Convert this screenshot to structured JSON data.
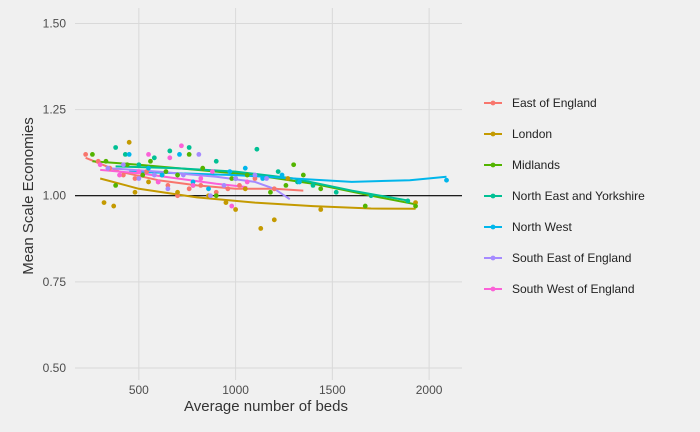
{
  "chart_data": {
    "type": "scatter",
    "title": "",
    "xlabel": "Average number of beds",
    "ylabel": "Mean Scale Economies",
    "xlim": [
      170,
      2170
    ],
    "ylim": [
      0.465,
      1.545
    ],
    "xticks": [
      500,
      1000,
      1500,
      2000
    ],
    "yticks": [
      0.5,
      0.75,
      1.0,
      1.25,
      1.5
    ],
    "ytick_labels": [
      "0.50",
      "0.75",
      "1.00",
      "1.25",
      "1.50"
    ],
    "reference_line_y": 1.0,
    "grid": true,
    "legend_position": "right",
    "series": [
      {
        "name": "East of England",
        "color": "#F8766D",
        "points": [
          [
            225,
            1.12
          ],
          [
            290,
            1.1
          ],
          [
            350,
            1.08
          ],
          [
            420,
            1.06
          ],
          [
            480,
            1.05
          ],
          [
            540,
            1.07
          ],
          [
            600,
            1.04
          ],
          [
            650,
            1.03
          ],
          [
            700,
            1.0
          ],
          [
            760,
            1.02
          ],
          [
            820,
            1.03
          ],
          [
            900,
            1.01
          ],
          [
            960,
            1.02
          ],
          [
            1020,
            1.03
          ],
          [
            1100,
            1.05
          ],
          [
            1200,
            1.02
          ]
        ],
        "fit": [
          [
            225,
            1.11
          ],
          [
            400,
            1.07
          ],
          [
            600,
            1.045
          ],
          [
            800,
            1.03
          ],
          [
            1000,
            1.02
          ],
          [
            1200,
            1.02
          ],
          [
            1350,
            1.015
          ]
        ]
      },
      {
        "name": "London",
        "color": "#C49A00",
        "points": [
          [
            320,
            0.98
          ],
          [
            370,
            0.97
          ],
          [
            450,
            1.155
          ],
          [
            480,
            1.01
          ],
          [
            550,
            1.04
          ],
          [
            620,
            1.06
          ],
          [
            700,
            1.01
          ],
          [
            780,
            1.03
          ],
          [
            860,
            1.0
          ],
          [
            950,
            0.98
          ],
          [
            1000,
            0.96
          ],
          [
            1050,
            1.02
          ],
          [
            1130,
            0.905
          ],
          [
            1200,
            0.93
          ],
          [
            1270,
            1.05
          ],
          [
            1440,
            0.96
          ],
          [
            1930,
            0.98
          ]
        ],
        "fit": [
          [
            300,
            1.05
          ],
          [
            500,
            1.02
          ],
          [
            800,
            0.995
          ],
          [
            1100,
            0.98
          ],
          [
            1400,
            0.97
          ],
          [
            1700,
            0.963
          ],
          [
            1930,
            0.962
          ]
        ]
      },
      {
        "name": "Midlands",
        "color": "#53B400",
        "points": [
          [
            260,
            1.12
          ],
          [
            330,
            1.1
          ],
          [
            380,
            1.03
          ],
          [
            440,
            1.09
          ],
          [
            520,
            1.06
          ],
          [
            560,
            1.1
          ],
          [
            640,
            1.07
          ],
          [
            700,
            1.06
          ],
          [
            760,
            1.12
          ],
          [
            830,
            1.08
          ],
          [
            900,
            1.0
          ],
          [
            980,
            1.05
          ],
          [
            1060,
            1.06
          ],
          [
            1180,
            1.01
          ],
          [
            1260,
            1.03
          ],
          [
            1300,
            1.09
          ],
          [
            1350,
            1.06
          ],
          [
            1440,
            1.02
          ],
          [
            1670,
            0.97
          ],
          [
            1930,
            0.97
          ]
        ],
        "fit": [
          [
            260,
            1.1
          ],
          [
            500,
            1.09
          ],
          [
            800,
            1.075
          ],
          [
            1100,
            1.06
          ],
          [
            1400,
            1.035
          ],
          [
            1700,
            1.0
          ],
          [
            1930,
            0.975
          ]
        ]
      },
      {
        "name": "North East and Yorkshire",
        "color": "#00C094",
        "points": [
          [
            380,
            1.14
          ],
          [
            430,
            1.12
          ],
          [
            500,
            1.09
          ],
          [
            580,
            1.11
          ],
          [
            660,
            1.13
          ],
          [
            760,
            1.14
          ],
          [
            900,
            1.1
          ],
          [
            1000,
            1.05
          ],
          [
            1110,
            1.135
          ],
          [
            1220,
            1.07
          ],
          [
            1320,
            1.04
          ],
          [
            1400,
            1.03
          ],
          [
            1520,
            1.01
          ],
          [
            1700,
            1.0
          ],
          [
            1890,
            0.985
          ]
        ],
        "fit": [
          [
            380,
            1.085
          ],
          [
            700,
            1.08
          ],
          [
            1000,
            1.07
          ],
          [
            1300,
            1.05
          ],
          [
            1600,
            1.015
          ],
          [
            1900,
            0.985
          ]
        ]
      },
      {
        "name": "North West",
        "color": "#00B6EB",
        "points": [
          [
            450,
            1.12
          ],
          [
            550,
            1.08
          ],
          [
            620,
            1.06
          ],
          [
            710,
            1.12
          ],
          [
            780,
            1.04
          ],
          [
            860,
            1.02
          ],
          [
            970,
            1.07
          ],
          [
            1050,
            1.08
          ],
          [
            1140,
            1.05
          ],
          [
            1240,
            1.06
          ],
          [
            1330,
            1.04
          ],
          [
            2090,
            1.045
          ]
        ],
        "fit": [
          [
            450,
            1.07
          ],
          [
            700,
            1.065
          ],
          [
            1000,
            1.06
          ],
          [
            1300,
            1.05
          ],
          [
            1600,
            1.04
          ],
          [
            1900,
            1.045
          ],
          [
            2090,
            1.055
          ]
        ]
      },
      {
        "name": "South East of England",
        "color": "#A58AFF",
        "points": [
          [
            340,
            1.08
          ],
          [
            420,
            1.09
          ],
          [
            500,
            1.05
          ],
          [
            580,
            1.06
          ],
          [
            650,
            1.02
          ],
          [
            730,
            1.06
          ],
          [
            810,
            1.12
          ],
          [
            870,
            1.0
          ],
          [
            940,
            1.03
          ],
          [
            1000,
            1.05
          ],
          [
            1100,
            1.06
          ],
          [
            1160,
            1.05
          ]
        ],
        "fit": [
          [
            340,
            1.08
          ],
          [
            600,
            1.07
          ],
          [
            900,
            1.055
          ],
          [
            1100,
            1.04
          ],
          [
            1200,
            1.02
          ],
          [
            1280,
            0.99
          ]
        ]
      },
      {
        "name": "South West of England",
        "color": "#FB61D7",
        "points": [
          [
            300,
            1.09
          ],
          [
            400,
            1.06
          ],
          [
            500,
            1.07
          ],
          [
            550,
            1.12
          ],
          [
            600,
            1.04
          ],
          [
            660,
            1.11
          ],
          [
            720,
            1.145
          ],
          [
            780,
            1.03
          ],
          [
            820,
            1.05
          ],
          [
            880,
            1.07
          ],
          [
            980,
            0.97
          ],
          [
            1060,
            1.04
          ]
        ],
        "fit": [
          [
            300,
            1.075
          ],
          [
            500,
            1.065
          ],
          [
            700,
            1.05
          ],
          [
            900,
            1.035
          ],
          [
            1060,
            1.025
          ]
        ]
      }
    ]
  }
}
